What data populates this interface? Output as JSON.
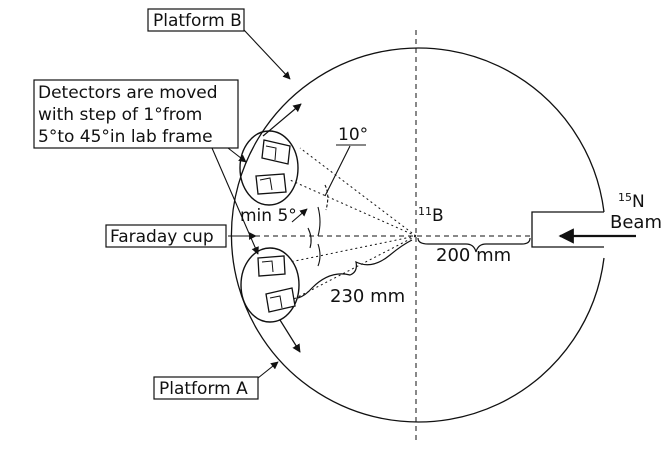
{
  "labels": {
    "platform_b": "Platform B",
    "platform_a": "Platform A",
    "detectors_line1": "Detectors are moved",
    "detectors_line2": "with step of 1°from",
    "detectors_line3": "5°to 45°in lab frame",
    "faraday_cup": "Faraday cup",
    "angle_10": "10°",
    "angle_min5": "min 5°",
    "target_mass": "11",
    "target_symbol": "B",
    "beam_mass": "15",
    "beam_symbol": "N",
    "beam_word": "Beam",
    "dist_200": "200 mm",
    "dist_230": "230 mm"
  },
  "colors": {
    "line": "#111111",
    "background": "#ffffff"
  }
}
